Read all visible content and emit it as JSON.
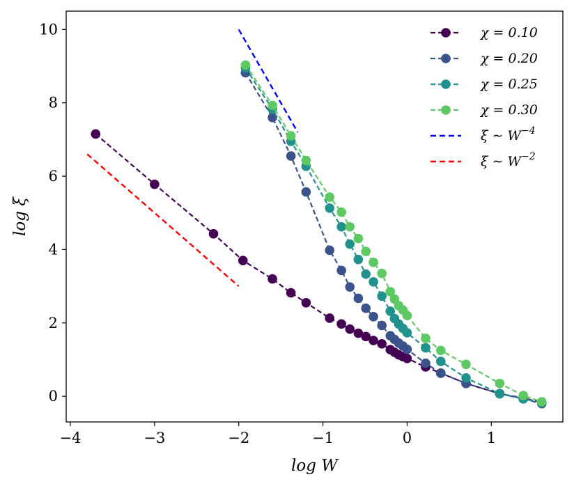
{
  "chart_data": {
    "type": "line",
    "xlabel": "log W",
    "ylabel": "log ξ",
    "xlim": [
      -4.05,
      1.85
    ],
    "ylim": [
      -0.7,
      10.5
    ],
    "xticks": [
      -4,
      -3,
      -2,
      -1,
      0,
      1
    ],
    "xtick_labels": [
      "−4",
      "−3",
      "−2",
      "−1",
      "0",
      "1"
    ],
    "yticks": [
      0,
      2,
      4,
      6,
      8,
      10
    ],
    "ytick_labels": [
      "0",
      "2",
      "4",
      "6",
      "8",
      "10"
    ],
    "legend_position": "top-right",
    "series": [
      {
        "name": "χ = 0.10",
        "color": "#440154",
        "style": "dashed-marker",
        "x": [
          -3.7,
          -3.0,
          -2.3,
          -1.95,
          -1.6,
          -1.38,
          -1.2,
          -0.92,
          -0.78,
          -0.68,
          -0.58,
          -0.49,
          -0.4,
          -0.3,
          -0.2,
          -0.15,
          -0.1,
          -0.05,
          0.0,
          0.22,
          0.4,
          0.7,
          1.1,
          1.38,
          1.6
        ],
        "y": [
          7.15,
          5.78,
          4.43,
          3.7,
          3.2,
          2.82,
          2.55,
          2.13,
          1.97,
          1.83,
          1.72,
          1.63,
          1.52,
          1.43,
          1.27,
          1.2,
          1.13,
          1.08,
          1.03,
          0.8,
          0.63,
          0.35,
          0.07,
          -0.05,
          -0.17
        ]
      },
      {
        "name": "χ = 0.20",
        "color": "#3b528b",
        "style": "dashed-marker",
        "x": [
          -1.92,
          -1.6,
          -1.38,
          -1.2,
          -0.92,
          -0.78,
          -0.68,
          -0.58,
          -0.49,
          -0.4,
          -0.3,
          -0.2,
          -0.15,
          -0.1,
          -0.05,
          0.0,
          0.22,
          0.4,
          0.7,
          1.1,
          1.38,
          1.6
        ],
        "y": [
          8.82,
          7.6,
          6.55,
          5.57,
          3.98,
          3.43,
          2.98,
          2.67,
          2.4,
          2.17,
          1.93,
          1.65,
          1.55,
          1.45,
          1.37,
          1.28,
          0.9,
          0.63,
          0.35,
          0.07,
          -0.07,
          -0.2
        ]
      },
      {
        "name": "χ = 0.25",
        "color": "#21918c",
        "style": "dashed-marker",
        "x": [
          -1.92,
          -1.6,
          -1.38,
          -1.2,
          -0.92,
          -0.78,
          -0.68,
          -0.58,
          -0.49,
          -0.4,
          -0.3,
          -0.2,
          -0.15,
          -0.1,
          -0.05,
          0.0,
          0.22,
          0.4,
          0.7,
          1.1,
          1.38,
          1.6
        ],
        "y": [
          8.95,
          7.83,
          6.95,
          6.27,
          5.13,
          4.62,
          4.15,
          3.73,
          3.33,
          3.12,
          2.73,
          2.32,
          2.12,
          1.97,
          1.85,
          1.73,
          1.32,
          0.95,
          0.5,
          0.07,
          -0.07,
          -0.17
        ]
      },
      {
        "name": "χ = 0.30",
        "color": "#5ec962",
        "style": "dashed-marker",
        "x": [
          -1.92,
          -1.6,
          -1.38,
          -1.2,
          -0.92,
          -0.78,
          -0.68,
          -0.58,
          -0.49,
          -0.4,
          -0.3,
          -0.2,
          -0.15,
          -0.1,
          -0.05,
          0.0,
          0.22,
          0.4,
          0.7,
          1.1,
          1.38,
          1.6
        ],
        "y": [
          9.03,
          7.93,
          7.1,
          6.43,
          5.43,
          5.02,
          4.62,
          4.3,
          3.95,
          3.65,
          3.35,
          2.85,
          2.65,
          2.47,
          2.35,
          2.2,
          1.58,
          1.25,
          0.87,
          0.35,
          0.02,
          -0.15
        ]
      },
      {
        "name": "ξ ∼ W^−4",
        "label_base": "ξ ∼ W",
        "label_sup": "−4",
        "color": "#0000ff",
        "style": "dashed",
        "x": [
          -2.0,
          -1.3
        ],
        "y": [
          10.0,
          7.2
        ]
      },
      {
        "name": "ξ ∼ W^−2",
        "label_base": "ξ ∼ W",
        "label_sup": "−2",
        "color": "#ff0000",
        "style": "dashed",
        "x": [
          -3.8,
          -2.0
        ],
        "y": [
          6.6,
          3.0
        ]
      }
    ]
  }
}
